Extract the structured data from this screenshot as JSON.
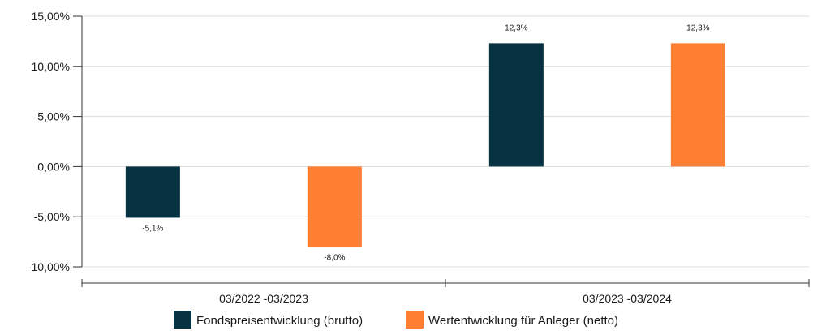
{
  "chart_data": {
    "type": "bar",
    "categories": [
      "03/2022 -03/2023",
      "03/2023 -03/2024"
    ],
    "series": [
      {
        "name": "Fondspreisentwicklung (brutto)",
        "color": "#063241",
        "values": [
          -5.1,
          12.3
        ],
        "labels": [
          "-5,1%",
          "12,3%"
        ]
      },
      {
        "name": "Wertentwicklung für Anleger (netto)",
        "color": "#FF7F32",
        "values": [
          -8.0,
          12.3
        ],
        "labels": [
          "-8,0%",
          "12,3%"
        ]
      }
    ],
    "yticks": [
      {
        "value": 15,
        "label": "15,00%"
      },
      {
        "value": 10,
        "label": "10,00%"
      },
      {
        "value": 5,
        "label": "5,00%"
      },
      {
        "value": 0,
        "label": "0,00%"
      },
      {
        "value": -5,
        "label": "-5,00%"
      },
      {
        "value": -10,
        "label": "-10,00%"
      }
    ],
    "ylim": [
      -10,
      15
    ],
    "grid": true,
    "legend_position": "bottom-center",
    "title": "",
    "xlabel": "",
    "ylabel": ""
  }
}
